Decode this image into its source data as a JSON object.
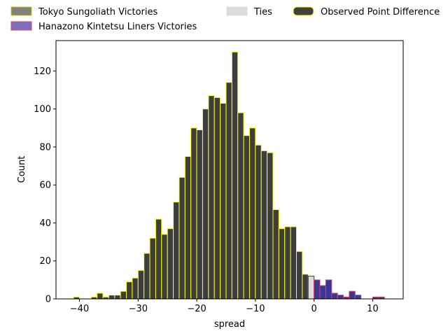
{
  "chart_data": {
    "type": "bar",
    "xlabel": "spread",
    "ylabel": "Count",
    "xlim": [
      -44,
      15.2
    ],
    "ylim": [
      0,
      136
    ],
    "xticks": [
      -40,
      -30,
      -20,
      -10,
      0,
      10
    ],
    "xtick_labels": [
      "−40",
      "−30",
      "−20",
      "−10",
      "0",
      "10"
    ],
    "yticks": [
      0,
      20,
      40,
      60,
      80,
      100,
      120
    ],
    "ytick_labels": [
      "0",
      "20",
      "40",
      "60",
      "80",
      "100",
      "120"
    ],
    "bin_width": 1,
    "legend": {
      "placement": "top, outside plot",
      "entries": [
        {
          "label": "Tokyo Sungoliath Victories",
          "fill": "#808080",
          "edge": "#cccc00"
        },
        {
          "label": "Hanazono Kintetsu Liners Victories",
          "fill": "#7b6fbf",
          "edge": "#d94060"
        },
        {
          "label": "Ties",
          "fill": "#dcdcdc",
          "edge": "#dcdcdc"
        },
        {
          "label": "Observed Point Difference",
          "fill": "#404040",
          "edge": "#ffff00"
        }
      ]
    },
    "series": [
      {
        "name": "Tokyo Sungoliath Victories",
        "fill": "#3d3d3d",
        "edge": "#ffff00",
        "bins": [
          {
            "x": -41,
            "count": 1
          },
          {
            "x": -38,
            "count": 1
          },
          {
            "x": -37,
            "count": 3
          },
          {
            "x": -36,
            "count": 1
          },
          {
            "x": -35,
            "count": 2
          },
          {
            "x": -34,
            "count": 2
          },
          {
            "x": -33,
            "count": 4
          },
          {
            "x": -32,
            "count": 9
          },
          {
            "x": -31,
            "count": 11
          },
          {
            "x": -30,
            "count": 15
          },
          {
            "x": -29,
            "count": 24
          },
          {
            "x": -28,
            "count": 32
          },
          {
            "x": -27,
            "count": 42
          },
          {
            "x": -26,
            "count": 34
          },
          {
            "x": -25,
            "count": 37
          },
          {
            "x": -24,
            "count": 51
          },
          {
            "x": -23,
            "count": 64
          },
          {
            "x": -22,
            "count": 75
          },
          {
            "x": -21,
            "count": 90
          },
          {
            "x": -20,
            "count": 89
          },
          {
            "x": -19,
            "count": 100
          },
          {
            "x": -18,
            "count": 107
          },
          {
            "x": -17,
            "count": 106
          },
          {
            "x": -16,
            "count": 103
          },
          {
            "x": -15,
            "count": 114
          },
          {
            "x": -14,
            "count": 130
          },
          {
            "x": -13,
            "count": 98
          },
          {
            "x": -12,
            "count": 86
          },
          {
            "x": -11,
            "count": 90
          },
          {
            "x": -10,
            "count": 81
          },
          {
            "x": -9,
            "count": 78
          },
          {
            "x": -8,
            "count": 77
          },
          {
            "x": -7,
            "count": 47
          },
          {
            "x": -6,
            "count": 37
          },
          {
            "x": -5,
            "count": 38
          },
          {
            "x": -4,
            "count": 38
          },
          {
            "x": -3,
            "count": 25
          },
          {
            "x": -2,
            "count": 13
          }
        ]
      },
      {
        "name": "Ties",
        "fill": "#dcdcdc",
        "edge": "#404040",
        "bins": [
          {
            "x": -1,
            "count": 12
          }
        ]
      },
      {
        "name": "Hanazono Kintetsu Liners Victories",
        "fill": "#3b3696",
        "edge": "#d94060",
        "bins": [
          {
            "x": 0,
            "count": 10
          },
          {
            "x": 1,
            "count": 7
          },
          {
            "x": 2,
            "count": 10
          },
          {
            "x": 3,
            "count": 3
          },
          {
            "x": 4,
            "count": 2
          },
          {
            "x": 5,
            "count": 1
          },
          {
            "x": 6,
            "count": 4
          },
          {
            "x": 7,
            "count": 2
          },
          {
            "x": 10,
            "count": 1
          },
          {
            "x": 11,
            "count": 1
          }
        ]
      }
    ]
  }
}
